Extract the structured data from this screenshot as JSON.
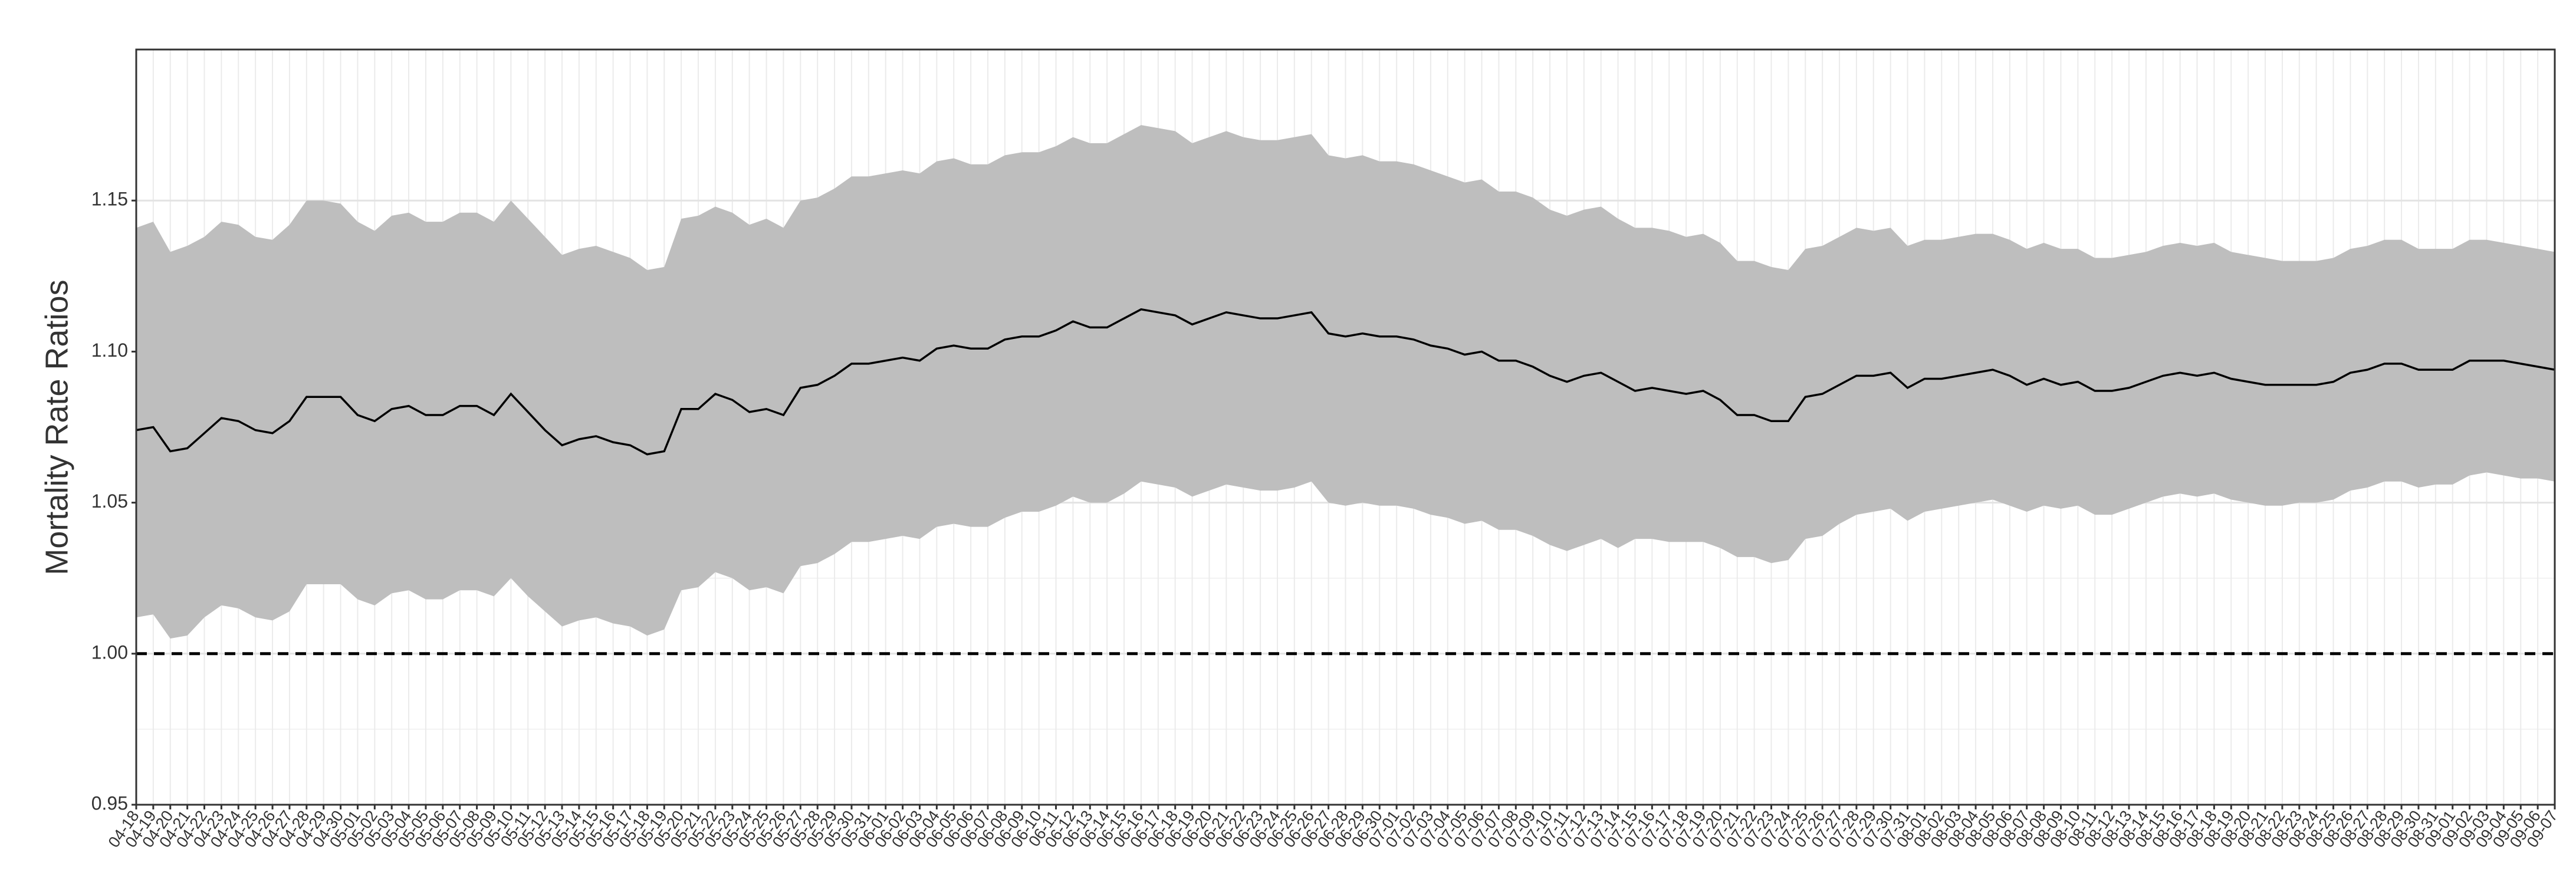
{
  "chart_data": {
    "type": "line",
    "y_label": "Mortality Rate Ratios",
    "ylim": [
      0.95,
      1.2
    ],
    "yticks": [
      {
        "value": 0.95,
        "label": "0.95"
      },
      {
        "value": 1.0,
        "label": "1.00"
      },
      {
        "value": 1.05,
        "label": "1.05"
      },
      {
        "value": 1.1,
        "label": "1.10"
      },
      {
        "value": 1.15,
        "label": "1.15"
      }
    ],
    "grid": true,
    "line_color": "#000000",
    "band_color": "#bebebe",
    "reference_line": 1.0,
    "categories": [
      "04-18",
      "04-19",
      "04-20",
      "04-21",
      "04-22",
      "04-23",
      "04-24",
      "04-25",
      "04-26",
      "04-27",
      "04-28",
      "04-29",
      "04-30",
      "05-01",
      "05-02",
      "05-03",
      "05-04",
      "05-05",
      "05-06",
      "05-07",
      "05-08",
      "05-09",
      "05-10",
      "05-11",
      "05-12",
      "05-13",
      "05-14",
      "05-15",
      "05-16",
      "05-17",
      "05-18",
      "05-19",
      "05-20",
      "05-21",
      "05-22",
      "05-23",
      "05-24",
      "05-25",
      "05-26",
      "05-27",
      "05-28",
      "05-29",
      "05-30",
      "05-31",
      "06-01",
      "06-02",
      "06-03",
      "06-04",
      "06-05",
      "06-06",
      "06-07",
      "06-08",
      "06-09",
      "06-10",
      "06-11",
      "06-12",
      "06-13",
      "06-14",
      "06-15",
      "06-16",
      "06-17",
      "06-18",
      "06-19",
      "06-20",
      "06-21",
      "06-22",
      "06-23",
      "06-24",
      "06-25",
      "06-26",
      "06-27",
      "06-28",
      "06-29",
      "06-30",
      "07-01",
      "07-02",
      "07-03",
      "07-04",
      "07-05",
      "07-06",
      "07-07",
      "07-08",
      "07-09",
      "07-10",
      "07-11",
      "07-12",
      "07-13",
      "07-14",
      "07-15",
      "07-16",
      "07-17",
      "07-18",
      "07-19",
      "07-20",
      "07-21",
      "07-22",
      "07-23",
      "07-24",
      "07-25",
      "07-26",
      "07-27",
      "07-28",
      "07-29",
      "07-30",
      "07-31",
      "08-01",
      "08-02",
      "08-03",
      "08-04",
      "08-05",
      "08-06",
      "08-07",
      "08-08",
      "08-09",
      "08-10",
      "08-11",
      "08-12",
      "08-13",
      "08-14",
      "08-15",
      "08-16",
      "08-17",
      "08-18",
      "08-19",
      "08-20",
      "08-21",
      "08-22",
      "08-23",
      "08-24",
      "08-25",
      "08-26",
      "08-27",
      "08-28",
      "08-29",
      "08-30",
      "08-31",
      "09-01",
      "09-02",
      "09-03",
      "09-04",
      "09-05",
      "09-06",
      "09-07"
    ],
    "values": [
      1.074,
      1.075,
      1.067,
      1.068,
      1.073,
      1.078,
      1.077,
      1.074,
      1.073,
      1.077,
      1.085,
      1.085,
      1.085,
      1.079,
      1.077,
      1.081,
      1.082,
      1.079,
      1.079,
      1.082,
      1.082,
      1.079,
      1.086,
      1.08,
      1.074,
      1.069,
      1.071,
      1.072,
      1.07,
      1.069,
      1.066,
      1.067,
      1.081,
      1.081,
      1.086,
      1.084,
      1.08,
      1.081,
      1.079,
      1.088,
      1.089,
      1.092,
      1.096,
      1.096,
      1.097,
      1.098,
      1.097,
      1.101,
      1.102,
      1.101,
      1.101,
      1.104,
      1.105,
      1.105,
      1.107,
      1.11,
      1.108,
      1.108,
      1.111,
      1.114,
      1.113,
      1.112,
      1.109,
      1.111,
      1.113,
      1.112,
      1.111,
      1.111,
      1.112,
      1.113,
      1.106,
      1.105,
      1.106,
      1.105,
      1.105,
      1.104,
      1.102,
      1.101,
      1.099,
      1.1,
      1.097,
      1.097,
      1.095,
      1.092,
      1.09,
      1.092,
      1.093,
      1.09,
      1.087,
      1.088,
      1.087,
      1.086,
      1.087,
      1.084,
      1.079,
      1.079,
      1.077,
      1.077,
      1.085,
      1.086,
      1.089,
      1.092,
      1.092,
      1.093,
      1.088,
      1.091,
      1.091,
      1.092,
      1.093,
      1.094,
      1.092,
      1.089,
      1.091,
      1.089,
      1.09,
      1.087,
      1.087,
      1.088,
      1.09,
      1.092,
      1.093,
      1.092,
      1.093,
      1.091,
      1.09,
      1.089,
      1.089,
      1.089,
      1.089,
      1.09,
      1.093,
      1.094,
      1.096,
      1.096,
      1.094,
      1.094,
      1.094,
      1.097,
      1.097,
      1.097,
      1.096,
      1.095,
      1.094
    ],
    "upper": [
      1.141,
      1.143,
      1.133,
      1.135,
      1.138,
      1.143,
      1.142,
      1.138,
      1.137,
      1.142,
      1.15,
      1.15,
      1.149,
      1.143,
      1.14,
      1.145,
      1.146,
      1.143,
      1.143,
      1.146,
      1.146,
      1.143,
      1.15,
      1.144,
      1.138,
      1.132,
      1.134,
      1.135,
      1.133,
      1.131,
      1.127,
      1.128,
      1.144,
      1.145,
      1.148,
      1.146,
      1.142,
      1.144,
      1.141,
      1.15,
      1.151,
      1.154,
      1.158,
      1.158,
      1.159,
      1.16,
      1.159,
      1.163,
      1.164,
      1.162,
      1.162,
      1.165,
      1.166,
      1.166,
      1.168,
      1.171,
      1.169,
      1.169,
      1.172,
      1.175,
      1.174,
      1.173,
      1.169,
      1.171,
      1.173,
      1.171,
      1.17,
      1.17,
      1.171,
      1.172,
      1.165,
      1.164,
      1.165,
      1.163,
      1.163,
      1.162,
      1.16,
      1.158,
      1.156,
      1.157,
      1.153,
      1.153,
      1.151,
      1.147,
      1.145,
      1.147,
      1.148,
      1.144,
      1.141,
      1.141,
      1.14,
      1.138,
      1.139,
      1.136,
      1.13,
      1.13,
      1.128,
      1.127,
      1.134,
      1.135,
      1.138,
      1.141,
      1.14,
      1.141,
      1.135,
      1.137,
      1.137,
      1.138,
      1.139,
      1.139,
      1.137,
      1.134,
      1.136,
      1.134,
      1.134,
      1.131,
      1.131,
      1.132,
      1.133,
      1.135,
      1.136,
      1.135,
      1.136,
      1.133,
      1.132,
      1.131,
      1.13,
      1.13,
      1.13,
      1.131,
      1.134,
      1.135,
      1.137,
      1.137,
      1.134,
      1.134,
      1.134,
      1.137,
      1.137,
      1.136,
      1.135,
      1.134,
      1.133
    ],
    "lower": [
      1.012,
      1.013,
      1.005,
      1.006,
      1.012,
      1.016,
      1.015,
      1.012,
      1.011,
      1.014,
      1.023,
      1.023,
      1.023,
      1.018,
      1.016,
      1.02,
      1.021,
      1.018,
      1.018,
      1.021,
      1.021,
      1.019,
      1.025,
      1.019,
      1.014,
      1.009,
      1.011,
      1.012,
      1.01,
      1.009,
      1.006,
      1.008,
      1.021,
      1.022,
      1.027,
      1.025,
      1.021,
      1.022,
      1.02,
      1.029,
      1.03,
      1.033,
      1.037,
      1.037,
      1.038,
      1.039,
      1.038,
      1.042,
      1.043,
      1.042,
      1.042,
      1.045,
      1.047,
      1.047,
      1.049,
      1.052,
      1.05,
      1.05,
      1.053,
      1.057,
      1.056,
      1.055,
      1.052,
      1.054,
      1.056,
      1.055,
      1.054,
      1.054,
      1.055,
      1.057,
      1.05,
      1.049,
      1.05,
      1.049,
      1.049,
      1.048,
      1.046,
      1.045,
      1.043,
      1.044,
      1.041,
      1.041,
      1.039,
      1.036,
      1.034,
      1.036,
      1.038,
      1.035,
      1.038,
      1.038,
      1.037,
      1.037,
      1.037,
      1.035,
      1.032,
      1.032,
      1.03,
      1.031,
      1.038,
      1.039,
      1.043,
      1.046,
      1.047,
      1.048,
      1.044,
      1.047,
      1.048,
      1.049,
      1.05,
      1.051,
      1.049,
      1.047,
      1.049,
      1.048,
      1.049,
      1.046,
      1.046,
      1.048,
      1.05,
      1.052,
      1.053,
      1.052,
      1.053,
      1.051,
      1.05,
      1.049,
      1.049,
      1.05,
      1.05,
      1.051,
      1.054,
      1.055,
      1.057,
      1.057,
      1.055,
      1.056,
      1.056,
      1.059,
      1.06,
      1.059,
      1.058,
      1.058,
      1.057
    ]
  }
}
